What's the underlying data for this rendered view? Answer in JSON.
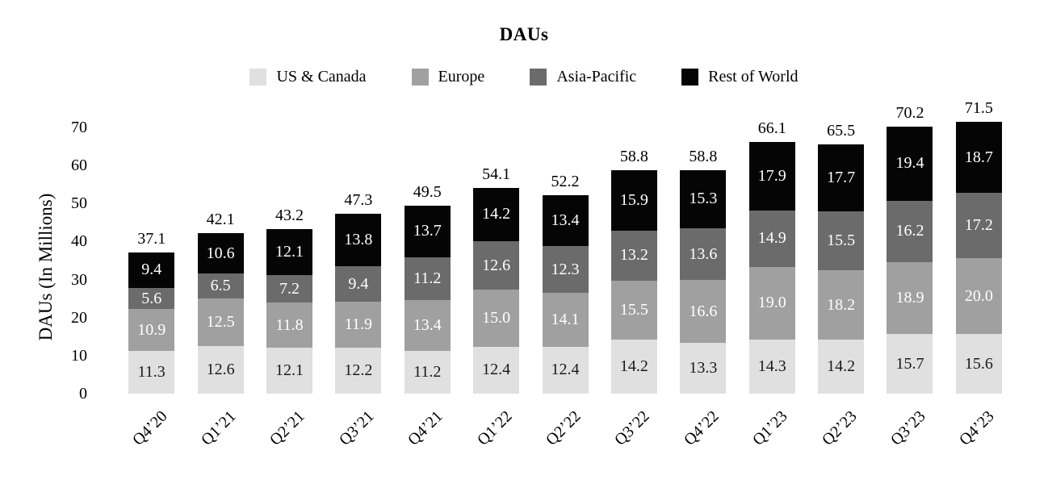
{
  "title": "DAUs",
  "y_axis": {
    "label": "DAUs (In Millions)",
    "ticks": [
      0,
      10,
      20,
      30,
      40,
      50,
      60,
      70
    ],
    "max": 70
  },
  "legend": [
    {
      "label": "US & Canada",
      "color": "#e0e0e0"
    },
    {
      "label": "Europe",
      "color": "#a0a0a0"
    },
    {
      "label": "Asia-Pacific",
      "color": "#6b6b6b"
    },
    {
      "label": "Rest of World",
      "color": "#050505"
    }
  ],
  "chart_data": {
    "type": "bar",
    "stacked": true,
    "title": "DAUs",
    "xlabel": "",
    "ylabel": "DAUs (In Millions)",
    "ylim": [
      0,
      70
    ],
    "grid": false,
    "legend_position": "top",
    "categories": [
      "Q4’20",
      "Q1’21",
      "Q2’21",
      "Q3’21",
      "Q4’21",
      "Q1’22",
      "Q2’22",
      "Q3’22",
      "Q4’22",
      "Q1’23",
      "Q2’23",
      "Q3’23",
      "Q4’23"
    ],
    "series": [
      {
        "name": "US & Canada",
        "color": "#e0e0e0",
        "label_color": "#1a1a1a",
        "values": [
          "11.3",
          "12.6",
          "12.1",
          "12.2",
          "11.2",
          "12.4",
          "12.4",
          "14.2",
          "13.3",
          "14.3",
          "14.2",
          "15.7",
          "15.6"
        ]
      },
      {
        "name": "Europe",
        "color": "#a0a0a0",
        "label_color": "#ffffff",
        "values": [
          "10.9",
          "12.5",
          "11.8",
          "11.9",
          "13.4",
          "15.0",
          "14.1",
          "15.5",
          "16.6",
          "19.0",
          "18.2",
          "18.9",
          "20.0"
        ]
      },
      {
        "name": "Asia-Pacific",
        "color": "#6b6b6b",
        "label_color": "#ffffff",
        "values": [
          "5.6",
          "6.5",
          "7.2",
          "9.4",
          "11.2",
          "12.6",
          "12.3",
          "13.2",
          "13.6",
          "14.9",
          "15.5",
          "16.2",
          "17.2"
        ]
      },
      {
        "name": "Rest of World",
        "color": "#050505",
        "label_color": "#ffffff",
        "values": [
          "9.4",
          "10.6",
          "12.1",
          "13.8",
          "13.7",
          "14.2",
          "13.4",
          "15.9",
          "15.3",
          "17.9",
          "17.7",
          "19.4",
          "18.7"
        ]
      }
    ],
    "totals": [
      "37.1",
      "42.1",
      "43.2",
      "47.3",
      "49.5",
      "54.1",
      "52.2",
      "58.8",
      "58.8",
      "66.1",
      "65.5",
      "70.2",
      "71.5"
    ]
  }
}
